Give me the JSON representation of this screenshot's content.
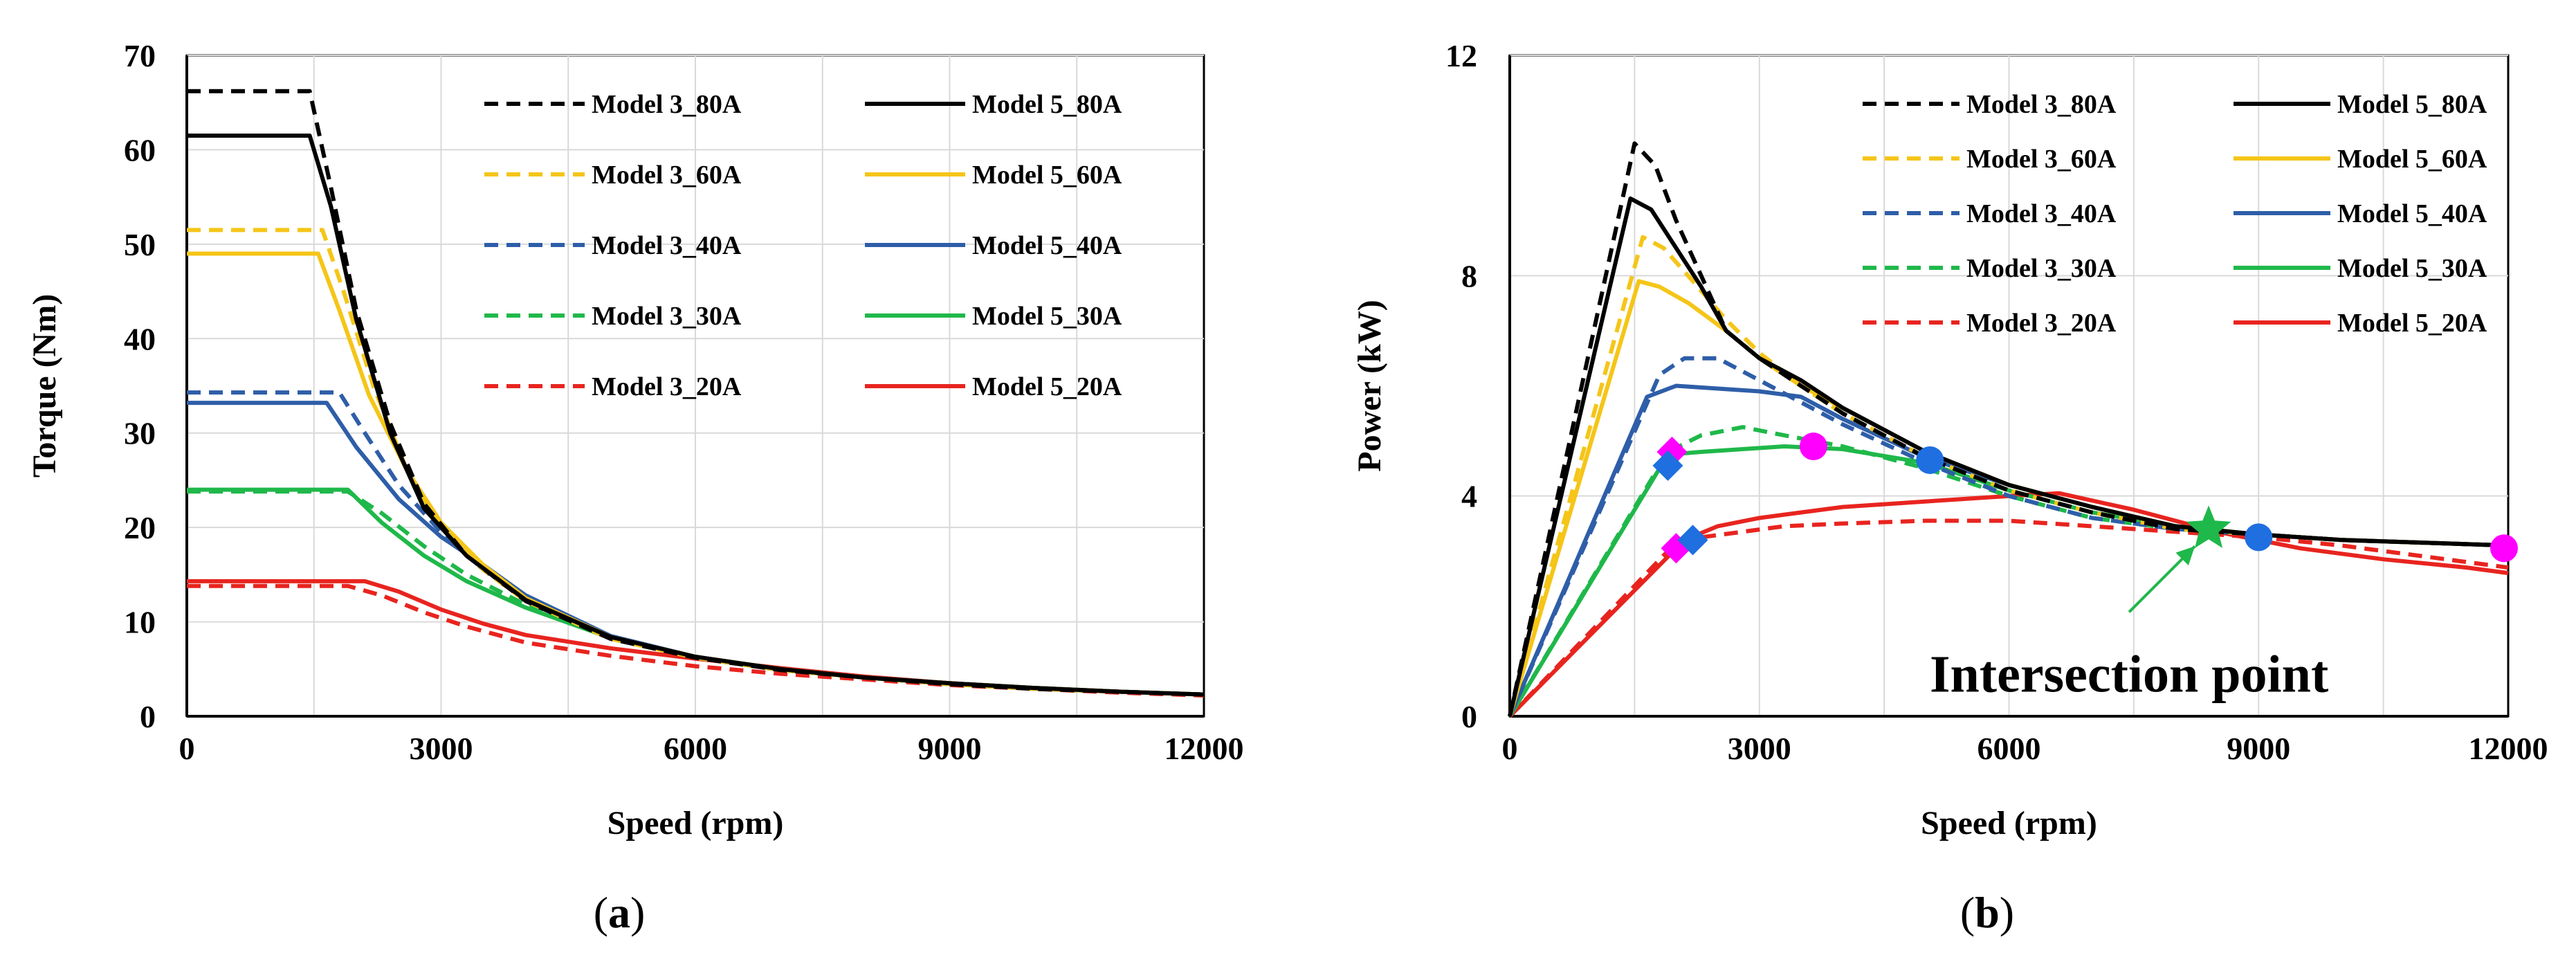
{
  "chart_data": [
    {
      "type": "line",
      "caption": "a",
      "xlabel": "Speed (rpm)",
      "ylabel": "Torque (Nm)",
      "xlim": [
        0,
        12000
      ],
      "ylim": [
        0,
        70
      ],
      "xticks": [
        0,
        3000,
        6000,
        9000,
        12000
      ],
      "yticks": [
        0,
        10,
        20,
        30,
        40,
        50,
        60,
        70
      ],
      "grid": true,
      "legend_position": "top-right",
      "series": [
        {
          "name": "Model 3_80A",
          "color": "#000000",
          "dash": true,
          "x": [
            0,
            1450,
            1700,
            2000,
            2400,
            2800,
            3300,
            4000,
            5000,
            6000,
            7000,
            8000,
            9000,
            10000,
            11000,
            12000
          ],
          "y": [
            66.2,
            66.2,
            56,
            43,
            31,
            22.5,
            17,
            12.2,
            8.2,
            6.2,
            4.9,
            4.1,
            3.4,
            2.9,
            2.6,
            2.3
          ]
        },
        {
          "name": "Model 5_80A",
          "color": "#000000",
          "dash": false,
          "x": [
            0,
            1450,
            1700,
            2000,
            2400,
            2800,
            3300,
            4000,
            5000,
            6000,
            7000,
            8000,
            9000,
            10000,
            11000,
            12000
          ],
          "y": [
            61.5,
            61.5,
            54,
            42,
            30,
            22,
            17,
            12.3,
            8.4,
            6.3,
            5.0,
            4.1,
            3.5,
            3.0,
            2.6,
            2.3
          ]
        },
        {
          "name": "Model 3_60A",
          "color": "#F5C518",
          "dash": true,
          "x": [
            0,
            1600,
            1850,
            2200,
            2600,
            3000,
            3500,
            4000,
            5000,
            6000,
            7000,
            8000,
            9000,
            10000,
            11000,
            12000
          ],
          "y": [
            51.5,
            51.5,
            45,
            35,
            26,
            20,
            15.5,
            12.2,
            8.2,
            6.2,
            4.9,
            4.1,
            3.4,
            2.9,
            2.6,
            2.3
          ]
        },
        {
          "name": "Model 5_60A",
          "color": "#F5C518",
          "dash": false,
          "x": [
            0,
            1550,
            1800,
            2150,
            2600,
            3000,
            3500,
            4000,
            5000,
            6000,
            7000,
            8000,
            9000,
            10000,
            11000,
            12000
          ],
          "y": [
            49,
            49,
            43,
            34,
            26,
            20.5,
            16,
            12.5,
            8.4,
            6.3,
            5.0,
            4.1,
            3.5,
            3.0,
            2.6,
            2.3
          ]
        },
        {
          "name": "Model 3_40A",
          "color": "#2E5EA8",
          "dash": true,
          "x": [
            0,
            1800,
            2100,
            2500,
            3000,
            3500,
            4000,
            5000,
            6000,
            7000,
            8000,
            9000,
            10000,
            11000,
            12000
          ],
          "y": [
            34.3,
            34.3,
            30,
            24.5,
            19.5,
            15.5,
            12.3,
            8.3,
            6.2,
            4.9,
            4.1,
            3.4,
            2.9,
            2.6,
            2.3
          ]
        },
        {
          "name": "Model 5_40A",
          "color": "#2E5EA8",
          "dash": false,
          "x": [
            0,
            1650,
            2000,
            2500,
            3000,
            3500,
            4000,
            5000,
            6000,
            7000,
            8000,
            9000,
            10000,
            11000,
            12000
          ],
          "y": [
            33.2,
            33.2,
            28.5,
            23,
            19,
            16,
            12.8,
            8.5,
            6.3,
            5.0,
            4.1,
            3.5,
            3.0,
            2.6,
            2.3
          ]
        },
        {
          "name": "Model 3_30A",
          "color": "#1FB84A",
          "dash": true,
          "x": [
            0,
            1900,
            2300,
            2800,
            3300,
            4000,
            5000,
            6000,
            7000,
            8000,
            9000,
            10000,
            11000,
            12000
          ],
          "y": [
            23.8,
            23.8,
            21.5,
            18,
            15,
            11.8,
            8.4,
            6.2,
            4.9,
            4.1,
            3.4,
            2.9,
            2.6,
            2.3
          ]
        },
        {
          "name": "Model 5_30A",
          "color": "#1FB84A",
          "dash": false,
          "x": [
            0,
            1900,
            2300,
            2800,
            3300,
            4000,
            5000,
            6000,
            7000,
            8000,
            9000,
            10000,
            11000,
            12000
          ],
          "y": [
            24,
            24,
            20.5,
            17,
            14.3,
            11.5,
            8.3,
            6.3,
            5.0,
            4.1,
            3.5,
            3.0,
            2.6,
            2.3
          ]
        },
        {
          "name": "Model 3_20A",
          "color": "#E8241F",
          "dash": true,
          "x": [
            0,
            1900,
            2300,
            2800,
            3300,
            4000,
            5000,
            6000,
            7000,
            8000,
            9000,
            10000,
            11000,
            12000
          ],
          "y": [
            13.8,
            13.8,
            12.8,
            11,
            9.5,
            7.8,
            6.4,
            5.3,
            4.5,
            3.9,
            3.3,
            2.9,
            2.5,
            2.2
          ]
        },
        {
          "name": "Model 5_20A",
          "color": "#E8241F",
          "dash": false,
          "x": [
            0,
            2100,
            2500,
            3000,
            3500,
            4000,
            5000,
            6000,
            7000,
            8000,
            9000,
            10000,
            11000,
            12000
          ],
          "y": [
            14.3,
            14.3,
            13.2,
            11.3,
            9.8,
            8.6,
            7.2,
            6.1,
            5.1,
            4.2,
            3.5,
            3.0,
            2.6,
            2.3
          ]
        }
      ]
    },
    {
      "type": "line",
      "caption": "b",
      "xlabel": "Speed (rpm)",
      "ylabel": "Power (kW)",
      "xlim": [
        0,
        12000
      ],
      "ylim": [
        0,
        12
      ],
      "xticks": [
        0,
        3000,
        6000,
        9000,
        12000
      ],
      "yticks": [
        0,
        4,
        8,
        12
      ],
      "grid": true,
      "legend_position": "top-right",
      "annotation": {
        "text": "Intersection point",
        "x": 8400,
        "y": 3.4,
        "arrow_color": "#1FB84A"
      },
      "series": [
        {
          "name": "Model 3_80A",
          "color": "#000000",
          "dash": true,
          "x": [
            0,
            1500,
            1750,
            2000,
            2300,
            2600,
            3000,
            3500,
            4000,
            5000,
            6000,
            7000,
            8000,
            9000,
            10000,
            11000,
            12000
          ],
          "y": [
            0,
            10.4,
            10.0,
            9.0,
            8.0,
            7.0,
            6.5,
            6.0,
            5.5,
            4.7,
            4.1,
            3.7,
            3.4,
            3.3,
            3.2,
            3.15,
            3.1
          ]
        },
        {
          "name": "Model 5_80A",
          "color": "#000000",
          "dash": false,
          "x": [
            0,
            1450,
            1700,
            2000,
            2300,
            2600,
            3000,
            3500,
            4000,
            5000,
            6000,
            7000,
            8000,
            9000,
            10000,
            11000,
            12000
          ],
          "y": [
            0,
            9.4,
            9.2,
            8.5,
            7.8,
            7.0,
            6.5,
            6.1,
            5.6,
            4.8,
            4.2,
            3.8,
            3.45,
            3.3,
            3.2,
            3.15,
            3.1
          ]
        },
        {
          "name": "Model 3_60A",
          "color": "#F5C518",
          "dash": true,
          "x": [
            0,
            1600,
            1850,
            2200,
            2600,
            3000,
            3500,
            4000,
            5000,
            6000,
            7000,
            8000,
            9000,
            10000,
            11000,
            12000
          ],
          "y": [
            0,
            8.7,
            8.5,
            7.9,
            7.2,
            6.6,
            6.0,
            5.5,
            4.7,
            4.1,
            3.7,
            3.4,
            3.3,
            3.2,
            3.15,
            3.1
          ]
        },
        {
          "name": "Model 5_60A",
          "color": "#F5C518",
          "dash": false,
          "x": [
            0,
            1550,
            1800,
            2150,
            2600,
            3000,
            3500,
            4000,
            5000,
            6000,
            7000,
            8000,
            9000,
            10000,
            11000,
            12000
          ],
          "y": [
            0,
            7.9,
            7.8,
            7.5,
            7.0,
            6.5,
            6.0,
            5.6,
            4.8,
            4.2,
            3.8,
            3.45,
            3.3,
            3.2,
            3.15,
            3.1
          ]
        },
        {
          "name": "Model 3_40A",
          "color": "#2E5EA8",
          "dash": true,
          "x": [
            0,
            1800,
            2100,
            2500,
            3000,
            3500,
            4000,
            5000,
            6000,
            7000,
            8000,
            9000,
            10000,
            11000,
            12000
          ],
          "y": [
            0,
            6.2,
            6.5,
            6.5,
            6.1,
            5.7,
            5.3,
            4.6,
            4.0,
            3.6,
            3.4,
            3.3,
            3.2,
            3.15,
            3.1
          ]
        },
        {
          "name": "Model 5_40A",
          "color": "#2E5EA8",
          "dash": false,
          "x": [
            0,
            1650,
            2000,
            2500,
            3000,
            3500,
            4000,
            5000,
            6000,
            7000,
            8000,
            9000,
            10000,
            11000,
            12000
          ],
          "y": [
            0,
            5.8,
            6.0,
            5.95,
            5.9,
            5.8,
            5.4,
            4.7,
            4.2,
            3.8,
            3.45,
            3.3,
            3.2,
            3.15,
            3.1
          ]
        },
        {
          "name": "Model 3_30A",
          "color": "#1FB84A",
          "dash": true,
          "x": [
            0,
            1900,
            2300,
            2800,
            3300,
            4000,
            5000,
            6000,
            7000,
            8000,
            9000,
            10000,
            11000,
            12000
          ],
          "y": [
            0,
            4.8,
            5.1,
            5.25,
            5.1,
            4.9,
            4.5,
            4.0,
            3.6,
            3.4,
            3.3,
            3.2,
            3.15,
            3.1
          ]
        },
        {
          "name": "Model 5_30A",
          "color": "#1FB84A",
          "dash": false,
          "x": [
            0,
            1900,
            2300,
            2800,
            3300,
            4000,
            5000,
            6000,
            7000,
            8000,
            9000,
            10000,
            11000,
            12000
          ],
          "y": [
            0,
            4.75,
            4.8,
            4.85,
            4.9,
            4.85,
            4.6,
            4.1,
            3.7,
            3.45,
            3.3,
            3.2,
            3.15,
            3.1
          ]
        },
        {
          "name": "Model 3_20A",
          "color": "#E8241F",
          "dash": true,
          "x": [
            0,
            1900,
            2300,
            2800,
            3300,
            4000,
            5000,
            6000,
            7000,
            8000,
            9000,
            10000,
            11000,
            12000
          ],
          "y": [
            0,
            3.0,
            3.25,
            3.35,
            3.45,
            3.5,
            3.55,
            3.55,
            3.45,
            3.35,
            3.25,
            3.1,
            2.9,
            2.7
          ]
        },
        {
          "name": "Model 5_20A",
          "color": "#E8241F",
          "dash": false,
          "x": [
            0,
            2100,
            2500,
            3000,
            3500,
            4000,
            5000,
            6000,
            6600,
            7500,
            8500,
            9500,
            10500,
            11500,
            12000
          ],
          "y": [
            0,
            3.2,
            3.45,
            3.6,
            3.7,
            3.8,
            3.9,
            4.0,
            4.05,
            3.75,
            3.35,
            3.05,
            2.85,
            2.7,
            2.6
          ]
        }
      ],
      "markers": [
        {
          "shape": "diamond",
          "color": "#FF00FF",
          "x": 1950,
          "y": 4.8
        },
        {
          "shape": "diamond",
          "color": "#1F6FE0",
          "x": 1900,
          "y": 4.55
        },
        {
          "shape": "circle",
          "color": "#FF00FF",
          "x": 3650,
          "y": 4.9
        },
        {
          "shape": "circle",
          "color": "#1F6FE0",
          "x": 5050,
          "y": 4.65
        },
        {
          "shape": "diamond",
          "color": "#FF00FF",
          "x": 2000,
          "y": 3.05
        },
        {
          "shape": "diamond",
          "color": "#1F6FE0",
          "x": 2200,
          "y": 3.2
        },
        {
          "shape": "star",
          "color": "#1FB84A",
          "x": 8400,
          "y": 3.4
        },
        {
          "shape": "circle",
          "color": "#1F6FE0",
          "x": 9000,
          "y": 3.25
        },
        {
          "shape": "circle",
          "color": "#FF00FF",
          "x": 11950,
          "y": 3.05
        }
      ]
    }
  ]
}
